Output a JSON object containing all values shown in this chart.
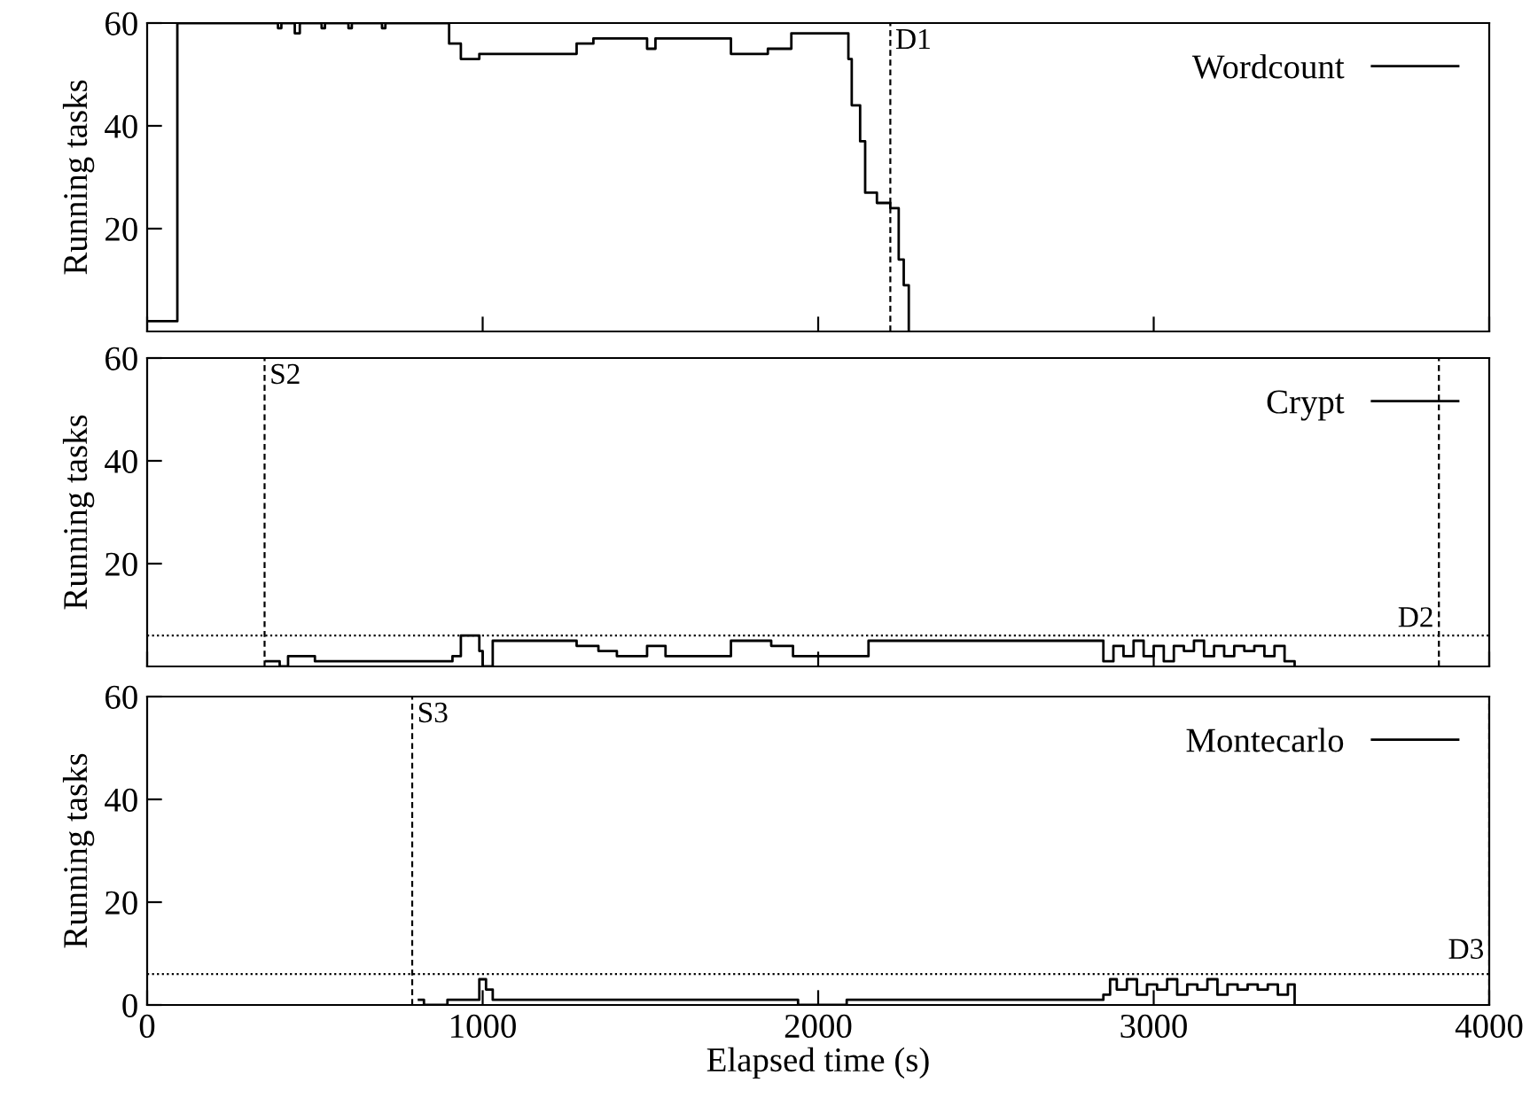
{
  "chart_data": [
    {
      "type": "step",
      "ylabel": "Running tasks",
      "xlim": [
        0,
        4000
      ],
      "xticks": [
        0,
        1000,
        2000,
        3000,
        4000
      ],
      "ylim": [
        0,
        60
      ],
      "yticks": [
        20,
        40,
        60
      ],
      "tick_labels": "y",
      "legend": "top right",
      "grid": false,
      "series": [
        {
          "name": "Wordcount",
          "color": "#000000",
          "x": [
            0,
            90,
            390,
            400,
            440,
            455,
            520,
            530,
            600,
            610,
            700,
            710,
            900,
            935,
            990,
            1280,
            1330,
            1490,
            1515,
            1740,
            1850,
            1920,
            2060,
            2090,
            2100,
            2125,
            2140,
            2175,
            2215,
            2240,
            2255,
            2270
          ],
          "values": [
            2,
            60,
            59,
            60,
            58,
            60,
            59,
            60,
            59,
            60,
            59,
            60,
            56,
            53,
            54,
            56,
            57,
            55,
            57,
            54,
            55,
            58,
            58,
            53,
            44,
            37,
            27,
            25,
            24,
            14,
            9,
            0
          ]
        }
      ],
      "ref_lines": [
        {
          "axis": "x",
          "value": 2215,
          "label": "D1",
          "line_style": "dashed",
          "color": "#000000"
        }
      ]
    },
    {
      "type": "step",
      "ylabel": "Running tasks",
      "xlim": [
        0,
        4000
      ],
      "xticks": [
        0,
        1000,
        2000,
        3000,
        4000
      ],
      "ylim": [
        0,
        60
      ],
      "yticks": [
        20,
        40,
        60
      ],
      "tick_labels": "y",
      "legend": "top right",
      "grid": false,
      "series": [
        {
          "name": "Crypt",
          "color": "#000000",
          "x": [
            355,
            395,
            420,
            500,
            910,
            935,
            990,
            1000,
            1030,
            1280,
            1345,
            1400,
            1490,
            1545,
            1740,
            1860,
            1925,
            2150,
            2850,
            2880,
            2910,
            2940,
            2970,
            3000,
            3030,
            3060,
            3090,
            3120,
            3150,
            3180,
            3210,
            3240,
            3270,
            3300,
            3330,
            3360,
            3390,
            3420
          ],
          "values": [
            1,
            0,
            2,
            1,
            2,
            6,
            3,
            0,
            5,
            4,
            3,
            2,
            4,
            2,
            5,
            4,
            2,
            5,
            1,
            4,
            2,
            5,
            2,
            4,
            1,
            4,
            3,
            5,
            2,
            4,
            2,
            4,
            3,
            4,
            2,
            4,
            1,
            0
          ]
        }
      ],
      "ref_lines": [
        {
          "axis": "x",
          "value": 350,
          "label": "S2",
          "line_style": "dashed",
          "color": "#000000"
        },
        {
          "axis": "x",
          "value": 3850,
          "label": "D2",
          "line_style": "dashed",
          "color": "#000000"
        },
        {
          "axis": "y",
          "value": 6,
          "line_style": "dotted",
          "color": "#000000"
        }
      ]
    },
    {
      "type": "step",
      "ylabel": "Running tasks",
      "xlabel": "Elapsed time (s)",
      "xlim": [
        0,
        4000
      ],
      "xticks": [
        0,
        1000,
        2000,
        3000,
        4000
      ],
      "ylim": [
        0,
        60
      ],
      "yticks": [
        0,
        20,
        40,
        60
      ],
      "legend": "top right",
      "grid": false,
      "series": [
        {
          "name": "Montecarlo",
          "color": "#000000",
          "x": [
            810,
            825,
            895,
            990,
            1010,
            1030,
            1940,
            2085,
            2850,
            2870,
            2890,
            2920,
            2950,
            2980,
            3010,
            3040,
            3070,
            3100,
            3130,
            3160,
            3190,
            3220,
            3250,
            3280,
            3310,
            3340,
            3370,
            3400,
            3420
          ],
          "values": [
            1,
            0,
            1,
            5,
            3,
            1,
            0,
            1,
            2,
            5,
            3,
            5,
            2,
            4,
            3,
            5,
            2,
            4,
            3,
            5,
            2,
            4,
            3,
            4,
            3,
            4,
            2,
            4,
            0
          ]
        }
      ],
      "ref_lines": [
        {
          "axis": "x",
          "value": 790,
          "label": "S3",
          "line_style": "dashed",
          "color": "#000000"
        },
        {
          "axis": "x",
          "value": 4000,
          "label": "D3",
          "line_style": "dashed",
          "color": "#000000"
        },
        {
          "axis": "y",
          "value": 6,
          "line_style": "dotted",
          "color": "#000000"
        }
      ]
    }
  ]
}
